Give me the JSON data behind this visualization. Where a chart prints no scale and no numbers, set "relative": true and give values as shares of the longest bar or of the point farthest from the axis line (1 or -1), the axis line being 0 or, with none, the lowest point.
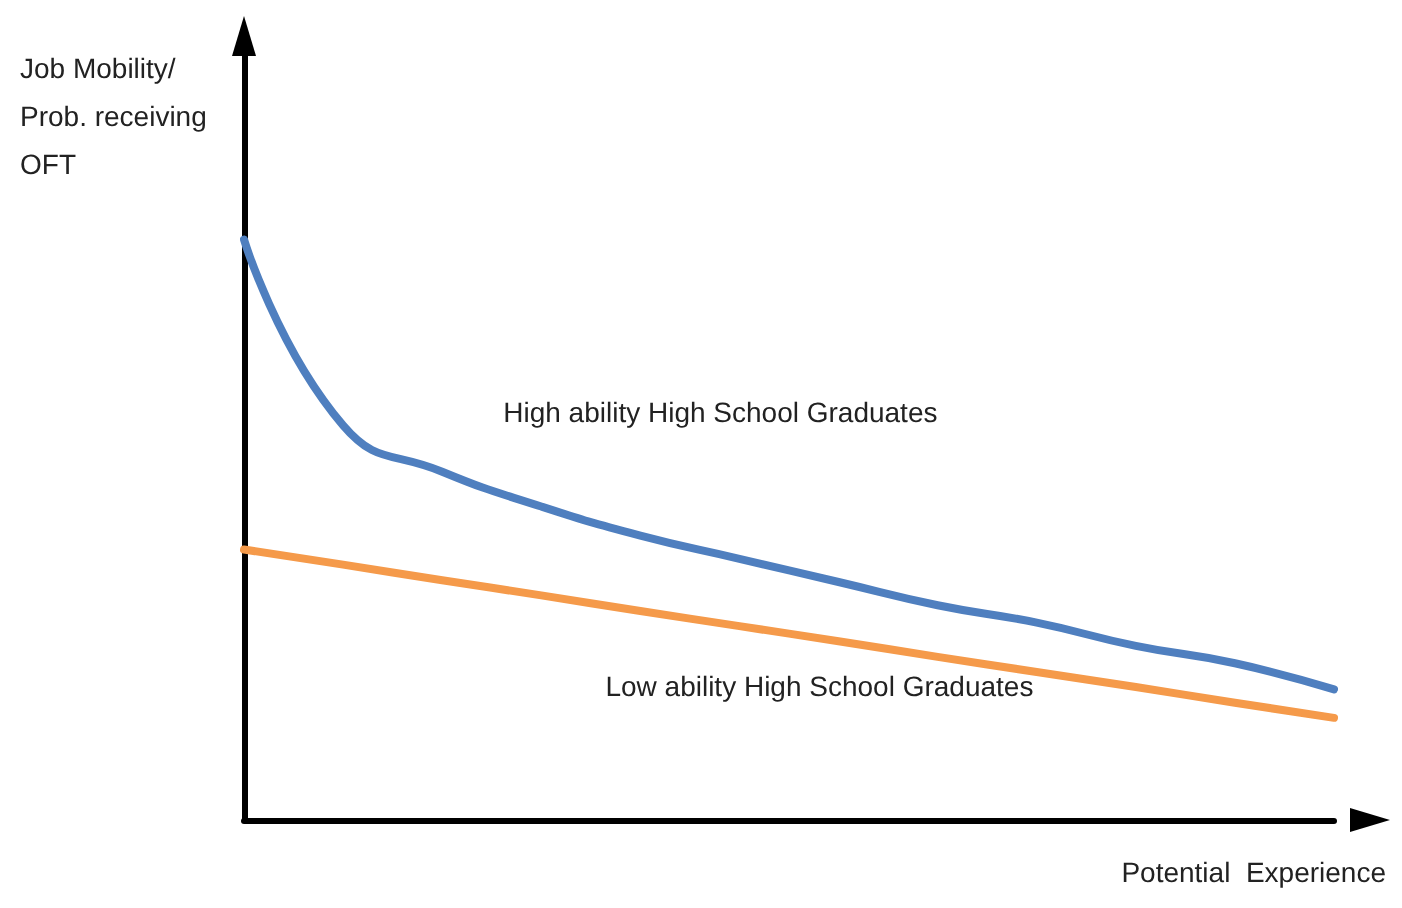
{
  "chart_data": {
    "type": "line",
    "relative": true,
    "xlabel": "Potential  Experience",
    "ylabel": "Job Mobility/ Prob. receiving OFT",
    "categories": [
      null,
      null,
      null,
      null,
      null,
      null,
      null,
      null,
      null,
      null,
      null,
      null
    ],
    "legend": false,
    "grid": false,
    "marker": "none",
    "line_style": "solid",
    "tick_labels": false,
    "series": [
      {
        "name": "High ability High School Graduates",
        "color": "#4f7fbf",
        "values": [
          1.0,
          0.68,
          0.6,
          0.54,
          0.49,
          0.45,
          0.41,
          0.37,
          0.34,
          0.3,
          0.27,
          0.225
        ]
      },
      {
        "name": "Low ability High School Graduates",
        "color": "#f59a4a",
        "values": [
          0.466,
          0.44,
          0.413,
          0.387,
          0.36,
          0.334,
          0.308,
          0.281,
          0.255,
          0.229,
          0.202,
          0.176
        ]
      }
    ]
  }
}
